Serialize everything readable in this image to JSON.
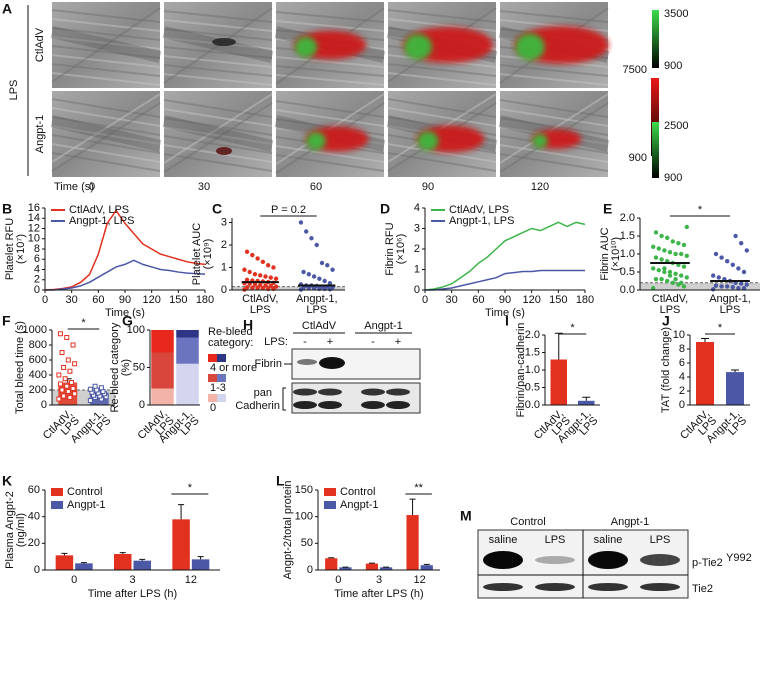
{
  "panel_a": {
    "panel": "A",
    "group": "LPS",
    "rows": [
      "CtlAdV",
      "Angpt-1"
    ],
    "time_label": "Time (s)",
    "times": [
      "0",
      "30",
      "60",
      "90",
      "120"
    ],
    "scale_top": [
      "3500",
      "900"
    ],
    "scale_mid": [
      "7500",
      "900"
    ],
    "scale_bottom": [
      "2500",
      "900"
    ]
  },
  "panel_h": {
    "panel": "H",
    "groups": [
      "CtlAdV",
      "Angpt-1"
    ],
    "lps_label": "LPS:",
    "signs": [
      "-",
      "+",
      "-",
      "+"
    ],
    "rows": [
      "Fibrin",
      "pan",
      "Cadherin"
    ]
  },
  "panel_m": {
    "panel": "M",
    "groups": [
      "Control",
      "Angpt-1"
    ],
    "lanes": [
      "saline",
      "LPS",
      "saline",
      "LPS"
    ],
    "rows": [
      "p-Tie2",
      "Tie2"
    ],
    "superscript": "Y992"
  },
  "chart_data": [
    {
      "type": "line",
      "panel": "B",
      "ylabel": [
        "Platelet RFU",
        "(×10⁷)"
      ],
      "xlabel": "Time (s)",
      "x": [
        0,
        10,
        20,
        30,
        40,
        50,
        60,
        70,
        80,
        90,
        100,
        110,
        120,
        130,
        140,
        150,
        160,
        170,
        180
      ],
      "xlim": [
        0,
        180
      ],
      "xticks": [
        0,
        30,
        60,
        90,
        120,
        150,
        180
      ],
      "ylim": [
        0,
        16
      ],
      "yticks": [
        0,
        2,
        4,
        6,
        8,
        10,
        12,
        14,
        16
      ],
      "series": [
        {
          "name": "CtlAdV, LPS",
          "color": "#e2321f",
          "values": [
            0,
            0.1,
            0.3,
            0.6,
            1.5,
            3,
            7,
            13,
            15.5,
            13,
            11,
            9,
            8,
            7,
            6.5,
            6,
            5.5,
            5.2,
            5
          ]
        },
        {
          "name": "Angpt-1, LPS",
          "color": "#4b58a6",
          "values": [
            0,
            0,
            0.2,
            0.4,
            0.8,
            1.5,
            2.5,
            3.5,
            4.5,
            5,
            5.8,
            5,
            4.5,
            4,
            3.8,
            3.5,
            3.3,
            3.2,
            3.1
          ]
        }
      ]
    },
    {
      "type": "strip",
      "panel": "C",
      "ylabel": [
        "Platelet AUC",
        "(×10⁹)"
      ],
      "annotation": "P = 0.2",
      "categories": [
        [
          "CtlAdV,",
          "LPS"
        ],
        [
          "Angpt-1,",
          "LPS"
        ]
      ],
      "ylim": [
        0,
        3.2
      ],
      "yticks": [
        0,
        1,
        2,
        3
      ],
      "reference_line": 0.15,
      "series": [
        {
          "color": "#e2321f",
          "median": 0.35,
          "values": [
            0.02,
            0.05,
            0.05,
            0.08,
            0.1,
            0.1,
            0.12,
            0.15,
            0.18,
            0.2,
            0.22,
            0.25,
            0.28,
            0.3,
            0.32,
            0.35,
            0.38,
            0.4,
            0.42,
            0.45,
            0.5,
            0.55,
            0.6,
            0.65,
            0.7,
            0.8,
            0.9,
            1.0,
            1.1,
            1.25,
            1.4,
            1.55,
            1.7
          ]
        },
        {
          "color": "#4b58a6",
          "median": 0.2,
          "values": [
            0.02,
            0.03,
            0.05,
            0.05,
            0.08,
            0.1,
            0.1,
            0.12,
            0.15,
            0.15,
            0.18,
            0.2,
            0.2,
            0.25,
            0.3,
            0.4,
            0.5,
            0.6,
            0.7,
            0.8,
            0.9,
            1.1,
            1.2,
            2.0,
            2.3,
            2.6,
            3.0
          ]
        }
      ]
    },
    {
      "type": "line",
      "panel": "D",
      "ylabel": [
        "Fibrin RFU",
        "(×10⁶)"
      ],
      "xlabel": "Time (s)",
      "x": [
        0,
        10,
        20,
        30,
        40,
        50,
        60,
        70,
        80,
        90,
        100,
        110,
        120,
        130,
        140,
        150,
        160,
        170,
        180
      ],
      "xlim": [
        0,
        180
      ],
      "xticks": [
        0,
        30,
        60,
        90,
        120,
        150,
        180
      ],
      "ylim": [
        0,
        4
      ],
      "yticks": [
        0,
        1,
        2,
        3,
        4
      ],
      "series": [
        {
          "name": "CtlAdV, LPS",
          "color": "#3db54a",
          "values": [
            0,
            0.05,
            0.15,
            0.3,
            0.6,
            0.9,
            1.3,
            1.6,
            2.0,
            2.4,
            2.6,
            2.8,
            3.0,
            2.9,
            3.1,
            3.3,
            3.1,
            3.3,
            3.2
          ]
        },
        {
          "name": "Angpt-1, LPS",
          "color": "#4b58a6",
          "values": [
            0,
            0,
            0.05,
            0.1,
            0.2,
            0.3,
            0.4,
            0.5,
            0.6,
            0.8,
            0.85,
            0.9,
            0.9,
            0.95,
            0.95,
            0.95,
            0.95,
            0.95,
            0.95
          ]
        }
      ]
    },
    {
      "type": "strip",
      "panel": "E",
      "ylabel": [
        "Fibrin AUC",
        "(×10¹⁰)"
      ],
      "annotation": "*",
      "categories": [
        [
          "CtlAdV,",
          "LPS"
        ],
        [
          "Angpt-1,",
          "LPS"
        ]
      ],
      "ylim": [
        0,
        2
      ],
      "yticks": [
        {
          "value": 0,
          "label": "0.0"
        },
        0.5,
        {
          "value": 1,
          "label": "1.0"
        },
        1.5,
        {
          "value": 2,
          "label": "2.0"
        }
      ],
      "reference_line": 0.2,
      "series": [
        {
          "color": "#3db54a",
          "median": 0.75,
          "values": [
            0.05,
            0.1,
            0.15,
            0.2,
            0.25,
            0.3,
            0.3,
            0.35,
            0.4,
            0.45,
            0.5,
            0.5,
            0.55,
            0.6,
            0.65,
            0.7,
            0.75,
            0.8,
            0.85,
            0.9,
            0.95,
            1.0,
            1.0,
            1.05,
            1.1,
            1.15,
            1.2,
            1.25,
            1.3,
            1.35,
            1.45,
            1.5,
            1.6,
            1.75,
            0.2,
            0.3,
            0.4,
            0.6
          ]
        },
        {
          "color": "#4b58a6",
          "median": 0.25,
          "values": [
            0.02,
            0.05,
            0.05,
            0.08,
            0.1,
            0.1,
            0.12,
            0.15,
            0.18,
            0.2,
            0.25,
            0.3,
            0.35,
            0.4,
            0.5,
            0.6,
            0.7,
            0.8,
            0.9,
            1.0,
            1.1,
            1.3,
            1.5
          ]
        }
      ]
    },
    {
      "type": "bar",
      "panel": "F",
      "ylabel": [
        "Total bleed time (s)"
      ],
      "annotation": "*",
      "categories": [
        [
          "CtlAdV,",
          "LPS"
        ],
        [
          "Angpt-1,",
          "LPS"
        ]
      ],
      "ylim": [
        0,
        1000
      ],
      "yticks": [
        0,
        200,
        400,
        600,
        800,
        1000
      ],
      "reference_line": 200,
      "values": [
        300,
        165
      ],
      "errors": [
        50,
        20
      ],
      "colors": [
        "#e2321f",
        "#4b58a6"
      ],
      "points": [
        [
          80,
          100,
          120,
          150,
          180,
          200,
          220,
          250,
          280,
          300,
          350,
          400,
          450,
          500,
          550,
          600,
          700,
          800,
          900,
          950
        ],
        [
          60,
          80,
          100,
          110,
          120,
          130,
          150,
          160,
          170,
          180,
          200,
          210,
          230,
          250
        ]
      ]
    },
    {
      "type": "stacked_bar",
      "panel": "G",
      "ylabel": [
        "Re-bleed category",
        "(%)"
      ],
      "legend_title": [
        "Re-bleed",
        "category:"
      ],
      "categories": [
        [
          "CtlAdV,",
          "LPS"
        ],
        [
          "Angpt-1,",
          "LPS"
        ]
      ],
      "ylim": [
        0,
        100
      ],
      "yticks": [
        0,
        50,
        100
      ],
      "series": [
        {
          "name": "0",
          "colors": [
            "#f3b3a8",
            "#d3d4ee"
          ],
          "values": [
            22,
            55
          ]
        },
        {
          "name": "1-3",
          "colors": [
            "#d9473c",
            "#6a74bf"
          ],
          "values": [
            48,
            35
          ]
        },
        {
          "name": "4 or more",
          "colors": [
            "#e8281c",
            "#2e3585"
          ],
          "values": [
            30,
            10
          ]
        }
      ]
    },
    {
      "type": "bar",
      "panel": "I",
      "ylabel": [
        "Fibrin/pan-cadherin"
      ],
      "annotation": "*",
      "categories": [
        [
          "CtlAdV,",
          "LPS"
        ],
        [
          "Angpt-1,",
          "LPS"
        ]
      ],
      "ylim": [
        0,
        2
      ],
      "yticks": [
        {
          "value": 0,
          "label": "0.0"
        },
        0.5,
        {
          "value": 1,
          "label": "1.0"
        },
        1.5,
        {
          "value": 2,
          "label": "2.0"
        }
      ],
      "values": [
        1.3,
        0.12
      ],
      "errors": [
        0.75,
        0.1
      ],
      "colors": [
        "#e2321f",
        "#4b58a6"
      ]
    },
    {
      "type": "bar",
      "panel": "J",
      "ylabel": [
        "TAT (fold change)"
      ],
      "annotation": "*",
      "categories": [
        [
          "CtlAdV,",
          "LPS"
        ],
        [
          "Angpt-1,",
          "LPS"
        ]
      ],
      "ylim": [
        0,
        10
      ],
      "yticks": [
        0,
        2,
        4,
        6,
        8,
        10
      ],
      "values": [
        9,
        4.7
      ],
      "errors": [
        0.5,
        0.3
      ],
      "colors": [
        "#e2321f",
        "#4b58a6"
      ]
    },
    {
      "type": "grouped_bar",
      "panel": "K",
      "ylabel": [
        "Plasma Angpt-2",
        "(ng/ml)"
      ],
      "xlabel": "Time after LPS (h)",
      "annotation": "*",
      "categories": [
        "0",
        "3",
        "12"
      ],
      "ylim": [
        0,
        60
      ],
      "yticks": [
        0,
        20,
        40,
        60
      ],
      "series": [
        {
          "name": "Control",
          "color": "#e2321f",
          "values": [
            11,
            12,
            38
          ],
          "errors": [
            1.5,
            1,
            11
          ]
        },
        {
          "name": "Angpt-1",
          "color": "#4b58a6",
          "values": [
            5,
            7,
            8
          ],
          "errors": [
            0.5,
            1,
            2
          ]
        }
      ]
    },
    {
      "type": "grouped_bar",
      "panel": "L",
      "ylabel": [
        "Angpt-2/total protein"
      ],
      "xlabel": "Time after LPS (h)",
      "annotation": "**",
      "categories": [
        "0",
        "3",
        "12"
      ],
      "ylim": [
        0,
        150
      ],
      "yticks": [
        0,
        50,
        100,
        150
      ],
      "series": [
        {
          "name": "Control",
          "color": "#e2321f",
          "values": [
            22,
            12,
            103
          ],
          "errors": [
            1,
            1,
            30
          ]
        },
        {
          "name": "Angpt-1",
          "color": "#4b58a6",
          "values": [
            5,
            5,
            9
          ],
          "errors": [
            0.5,
            0.5,
            1.5
          ]
        }
      ]
    }
  ]
}
